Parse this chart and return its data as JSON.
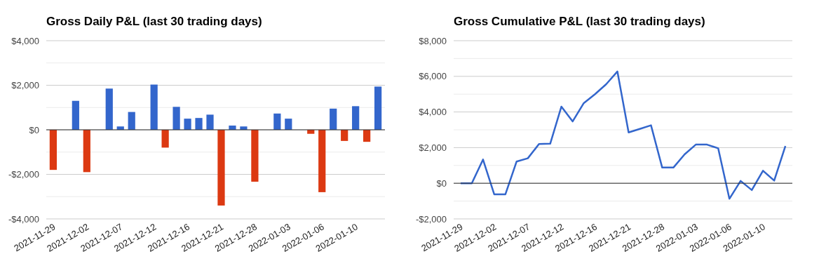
{
  "chart_data": [
    {
      "type": "bar",
      "title": "Gross Daily P&L (last 30 trading days)",
      "categories": [
        "2021-11-29",
        null,
        null,
        "2021-12-02",
        null,
        null,
        "2021-12-07",
        null,
        null,
        "2021-12-12",
        null,
        null,
        "2021-12-16",
        null,
        null,
        "2021-12-21",
        null,
        null,
        "2021-12-28",
        null,
        null,
        "2022-01-03",
        null,
        null,
        "2022-01-06",
        null,
        null,
        "2022-01-10",
        null,
        null
      ],
      "values": [
        -1800,
        null,
        1300,
        -1900,
        null,
        1850,
        150,
        800,
        null,
        2030,
        -800,
        1030,
        500,
        530,
        680,
        -3400,
        190,
        150,
        -2330,
        null,
        730,
        500,
        null,
        -180,
        -2800,
        950,
        -500,
        1060,
        -540,
        1940
      ],
      "colors": [
        "#dc3912",
        null,
        "#3366cc",
        "#dc3912",
        null,
        "#3366cc",
        "#3366cc",
        "#3366cc",
        null,
        "#3366cc",
        "#dc3912",
        "#3366cc",
        "#3366cc",
        "#3366cc",
        "#3366cc",
        "#dc3912",
        "#3366cc",
        "#3366cc",
        "#dc3912",
        null,
        "#3366cc",
        "#3366cc",
        null,
        "#dc3912",
        "#dc3912",
        "#3366cc",
        "#dc3912",
        "#3366cc",
        "#dc3912",
        "#3366cc"
      ],
      "ylim": [
        -4000,
        4000
      ],
      "yticks": [
        {
          "value": -4000,
          "label": "-$4,000"
        },
        {
          "value": -3000,
          "label": null
        },
        {
          "value": -2000,
          "label": "-$2,000"
        },
        {
          "value": -1000,
          "label": null
        },
        {
          "value": 0,
          "label": "$0"
        },
        {
          "value": 1000,
          "label": null
        },
        {
          "value": 2000,
          "label": "$2,000"
        },
        {
          "value": 3000,
          "label": null
        },
        {
          "value": 4000,
          "label": "$4,000"
        }
      ],
      "grid": "y"
    },
    {
      "type": "line",
      "title": "Gross Cumulative P&L (last 30 trading days)",
      "categories": [
        "2021-11-29",
        null,
        null,
        "2021-12-02",
        null,
        null,
        "2021-12-07",
        null,
        null,
        "2021-12-12",
        null,
        null,
        "2021-12-16",
        null,
        null,
        "2021-12-21",
        null,
        null,
        "2021-12-28",
        null,
        null,
        "2022-01-03",
        null,
        null,
        "2022-01-06",
        null,
        null,
        "2022-01-10",
        null,
        null
      ],
      "series": [
        {
          "color": "#3366cc",
          "values": [
            0,
            0,
            1330,
            -620,
            -620,
            1220,
            1400,
            2200,
            2220,
            4300,
            3470,
            4500,
            5000,
            5560,
            6270,
            2850,
            3050,
            3250,
            880,
            880,
            1620,
            2170,
            2170,
            1960,
            -870,
            130,
            -380,
            700,
            150,
            2090
          ]
        }
      ],
      "ylim": [
        -2000,
        8000
      ],
      "yticks": [
        {
          "value": -2000,
          "label": "-$2,000"
        },
        {
          "value": -1000,
          "label": null
        },
        {
          "value": 0,
          "label": "$0"
        },
        {
          "value": 1000,
          "label": null
        },
        {
          "value": 2000,
          "label": "$2,000"
        },
        {
          "value": 3000,
          "label": null
        },
        {
          "value": 4000,
          "label": "$4,000"
        },
        {
          "value": 5000,
          "label": null
        },
        {
          "value": 6000,
          "label": "$6,000"
        },
        {
          "value": 7000,
          "label": null
        },
        {
          "value": 8000,
          "label": "$8,000"
        }
      ],
      "grid": "y",
      "marker": "none",
      "line_style": "solid"
    }
  ]
}
